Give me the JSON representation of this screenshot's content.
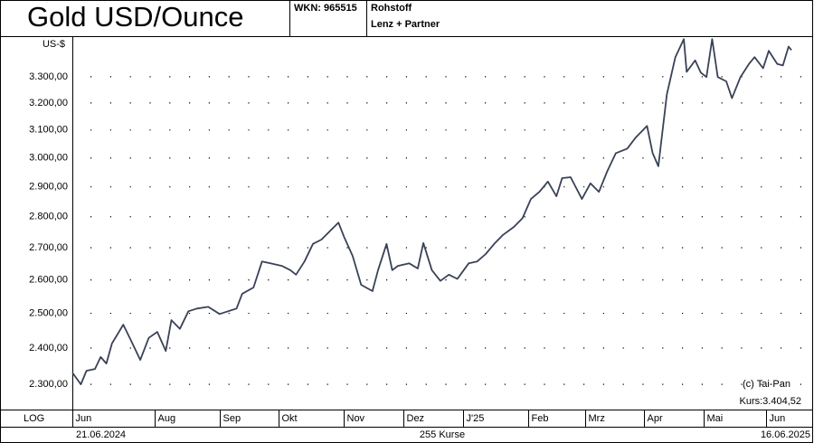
{
  "chart_data": {
    "type": "line",
    "title": "Gold USD/Ounce",
    "wkn": "WKN: 965515",
    "asset_class": "Rohstoff",
    "provider": "Lenz + Partner",
    "y_unit": "US-$",
    "scale_label": "LOG",
    "start_date": "21.06.2024",
    "end_date": "16.06.2025",
    "count_label": "255 Kurse",
    "copyright": "(c) Tai-Pan",
    "last_price_label": "Kurs:3.404,52",
    "log_scale": true,
    "grid": true,
    "color": "#3a4256",
    "xlim": [
      0,
      254
    ],
    "ylim": [
      2233,
      3461
    ],
    "yticks": [
      {
        "value": 2300,
        "label": "2.300,00"
      },
      {
        "value": 2400,
        "label": "2.400,00"
      },
      {
        "value": 2500,
        "label": "2.500,00"
      },
      {
        "value": 2600,
        "label": "2.600,00"
      },
      {
        "value": 2700,
        "label": "2.700,00"
      },
      {
        "value": 2800,
        "label": "2.800,00"
      },
      {
        "value": 2900,
        "label": "2.900,00"
      },
      {
        "value": 3000,
        "label": "3.000,00"
      },
      {
        "value": 3100,
        "label": "3.100,00"
      },
      {
        "value": 3200,
        "label": "3.200,00"
      },
      {
        "value": 3300,
        "label": "3.300,00"
      }
    ],
    "xticks": [
      {
        "value": 0,
        "label": "Jun"
      },
      {
        "value": 29,
        "label": "Aug"
      },
      {
        "value": 52,
        "label": "Sep"
      },
      {
        "value": 73,
        "label": "Okt"
      },
      {
        "value": 96,
        "label": "Nov"
      },
      {
        "value": 117,
        "label": "Dez"
      },
      {
        "value": 138,
        "label": "J'25"
      },
      {
        "value": 161,
        "label": "Feb"
      },
      {
        "value": 181,
        "label": "Mrz"
      },
      {
        "value": 202,
        "label": "Apr"
      },
      {
        "value": 223,
        "label": "Mai"
      },
      {
        "value": 245,
        "label": "Jun"
      }
    ],
    "x": [
      0,
      3,
      5,
      8,
      10,
      12,
      14,
      18,
      21,
      24,
      27,
      30,
      33,
      35,
      38,
      41,
      44,
      48,
      52,
      55,
      58,
      60,
      64,
      67,
      70,
      74,
      77,
      79,
      82,
      85,
      88,
      94,
      96,
      99,
      102,
      106,
      108,
      111,
      113,
      115,
      119,
      122,
      124,
      127,
      130,
      133,
      136,
      140,
      143,
      146,
      149,
      152,
      156,
      159,
      162,
      165,
      168,
      171,
      173,
      176,
      180,
      183,
      186,
      189,
      192,
      196,
      199,
      203,
      205,
      207,
      210,
      213,
      216,
      217,
      220,
      222,
      224,
      226,
      228,
      231,
      233,
      236,
      239,
      241,
      244,
      246,
      249,
      251,
      253,
      254
    ],
    "values": [
      2332,
      2300,
      2337,
      2342,
      2375,
      2357,
      2413,
      2467,
      2417,
      2367,
      2429,
      2446,
      2392,
      2480,
      2455,
      2506,
      2514,
      2519,
      2498,
      2506,
      2514,
      2558,
      2577,
      2657,
      2651,
      2643,
      2630,
      2616,
      2657,
      2712,
      2726,
      2781,
      2734,
      2674,
      2585,
      2566,
      2630,
      2712,
      2630,
      2643,
      2651,
      2635,
      2715,
      2630,
      2597,
      2616,
      2603,
      2651,
      2657,
      2680,
      2712,
      2740,
      2767,
      2795,
      2859,
      2883,
      2918,
      2868,
      2930,
      2933,
      2859,
      2912,
      2883,
      2955,
      3017,
      3033,
      3073,
      3115,
      3017,
      2971,
      3232,
      3377,
      3449,
      3319,
      3364,
      3316,
      3299,
      3449,
      3299,
      3282,
      3218,
      3299,
      3350,
      3377,
      3333,
      3402,
      3350,
      3344,
      3419,
      3405
    ]
  }
}
